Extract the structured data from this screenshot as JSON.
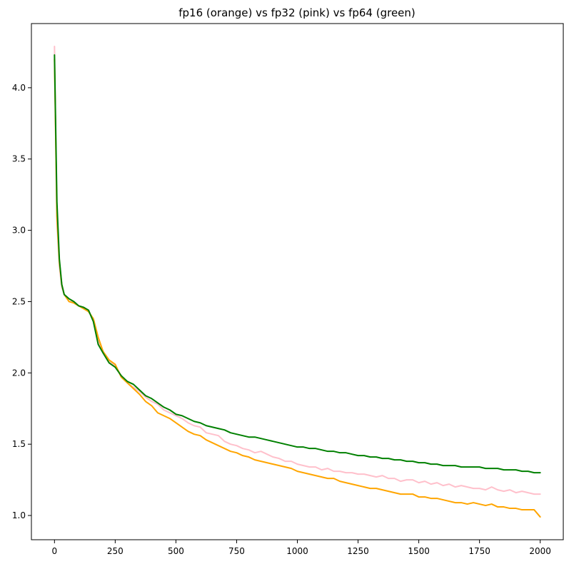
{
  "chart_data": {
    "type": "line",
    "title": "fp16 (orange) vs fp32 (pink) vs fp64 (green)",
    "xlabel": "",
    "ylabel": "",
    "xlim": [
      -95,
      2095
    ],
    "ylim": [
      0.83,
      4.45
    ],
    "xticks": [
      0,
      250,
      500,
      750,
      1000,
      1250,
      1500,
      1750,
      2000
    ],
    "yticks": [
      1.0,
      1.5,
      2.0,
      2.5,
      3.0,
      3.5,
      4.0
    ],
    "ytick_labels": [
      "1.0",
      "1.5",
      "2.0",
      "2.5",
      "3.0",
      "3.5",
      "4.0"
    ],
    "grid": false,
    "legend": "none",
    "series": [
      {
        "color": "#ffc0cb",
        "x": [
          0,
          10,
          20,
          30,
          40,
          60,
          80,
          100,
          120,
          140,
          160,
          180,
          200,
          225,
          250,
          275,
          300,
          325,
          350,
          375,
          400,
          425,
          450,
          475,
          500,
          525,
          550,
          575,
          600,
          625,
          650,
          675,
          700,
          725,
          750,
          775,
          800,
          825,
          850,
          875,
          900,
          925,
          950,
          975,
          1000,
          1025,
          1050,
          1075,
          1100,
          1125,
          1150,
          1175,
          1200,
          1225,
          1250,
          1275,
          1300,
          1325,
          1350,
          1375,
          1400,
          1425,
          1450,
          1475,
          1500,
          1525,
          1550,
          1575,
          1600,
          1625,
          1650,
          1675,
          1700,
          1725,
          1750,
          1775,
          1800,
          1825,
          1850,
          1875,
          1900,
          1925,
          1950,
          1975,
          2000
        ],
        "y": [
          4.29,
          3.05,
          2.75,
          2.6,
          2.55,
          2.5,
          2.5,
          2.47,
          2.46,
          2.44,
          2.37,
          2.22,
          2.15,
          2.08,
          2.05,
          1.98,
          1.93,
          1.9,
          1.87,
          1.83,
          1.8,
          1.78,
          1.74,
          1.72,
          1.7,
          1.68,
          1.65,
          1.63,
          1.62,
          1.58,
          1.57,
          1.56,
          1.52,
          1.5,
          1.49,
          1.47,
          1.46,
          1.44,
          1.45,
          1.43,
          1.41,
          1.4,
          1.38,
          1.38,
          1.36,
          1.35,
          1.34,
          1.34,
          1.32,
          1.33,
          1.31,
          1.31,
          1.3,
          1.3,
          1.29,
          1.29,
          1.28,
          1.27,
          1.28,
          1.26,
          1.26,
          1.24,
          1.25,
          1.25,
          1.23,
          1.24,
          1.22,
          1.23,
          1.21,
          1.22,
          1.2,
          1.21,
          1.2,
          1.19,
          1.19,
          1.18,
          1.2,
          1.18,
          1.17,
          1.18,
          1.16,
          1.17,
          1.16,
          1.15,
          1.15
        ]
      },
      {
        "color": "#ffa500",
        "x": [
          0,
          10,
          20,
          30,
          40,
          60,
          80,
          100,
          120,
          140,
          160,
          180,
          200,
          225,
          250,
          275,
          300,
          325,
          350,
          375,
          400,
          425,
          450,
          475,
          500,
          525,
          550,
          575,
          600,
          625,
          650,
          675,
          700,
          725,
          750,
          775,
          800,
          825,
          850,
          875,
          900,
          925,
          950,
          975,
          1000,
          1025,
          1050,
          1075,
          1100,
          1125,
          1150,
          1175,
          1200,
          1225,
          1250,
          1275,
          1300,
          1325,
          1350,
          1375,
          1400,
          1425,
          1450,
          1475,
          1500,
          1525,
          1550,
          1575,
          1600,
          1625,
          1650,
          1675,
          1700,
          1725,
          1750,
          1775,
          1800,
          1825,
          1850,
          1875,
          1900,
          1925,
          1950,
          1975,
          2000
        ],
        "y": [
          4.2,
          3.1,
          2.78,
          2.62,
          2.55,
          2.5,
          2.49,
          2.47,
          2.45,
          2.43,
          2.38,
          2.25,
          2.15,
          2.09,
          2.06,
          1.97,
          1.93,
          1.89,
          1.85,
          1.8,
          1.77,
          1.72,
          1.7,
          1.68,
          1.65,
          1.62,
          1.59,
          1.57,
          1.56,
          1.53,
          1.51,
          1.49,
          1.47,
          1.45,
          1.44,
          1.42,
          1.41,
          1.39,
          1.38,
          1.37,
          1.36,
          1.35,
          1.34,
          1.33,
          1.31,
          1.3,
          1.29,
          1.28,
          1.27,
          1.26,
          1.26,
          1.24,
          1.23,
          1.22,
          1.21,
          1.2,
          1.19,
          1.19,
          1.18,
          1.17,
          1.16,
          1.15,
          1.15,
          1.15,
          1.13,
          1.13,
          1.12,
          1.12,
          1.11,
          1.1,
          1.09,
          1.09,
          1.08,
          1.09,
          1.08,
          1.07,
          1.08,
          1.06,
          1.06,
          1.05,
          1.05,
          1.04,
          1.04,
          1.04,
          0.99
        ]
      },
      {
        "color": "#008000",
        "x": [
          0,
          10,
          20,
          30,
          40,
          60,
          80,
          100,
          120,
          140,
          160,
          180,
          200,
          225,
          250,
          275,
          300,
          325,
          350,
          375,
          400,
          425,
          450,
          475,
          500,
          525,
          550,
          575,
          600,
          625,
          650,
          675,
          700,
          725,
          750,
          775,
          800,
          825,
          850,
          875,
          900,
          925,
          950,
          975,
          1000,
          1025,
          1050,
          1075,
          1100,
          1125,
          1150,
          1175,
          1200,
          1225,
          1250,
          1275,
          1300,
          1325,
          1350,
          1375,
          1400,
          1425,
          1450,
          1475,
          1500,
          1525,
          1550,
          1575,
          1600,
          1625,
          1650,
          1675,
          1700,
          1725,
          1750,
          1775,
          1800,
          1825,
          1850,
          1875,
          1900,
          1925,
          1950,
          1975,
          2000
        ],
        "y": [
          4.23,
          3.2,
          2.8,
          2.62,
          2.55,
          2.52,
          2.5,
          2.47,
          2.46,
          2.44,
          2.36,
          2.2,
          2.14,
          2.07,
          2.04,
          1.98,
          1.94,
          1.92,
          1.88,
          1.84,
          1.82,
          1.79,
          1.76,
          1.74,
          1.71,
          1.7,
          1.68,
          1.66,
          1.65,
          1.63,
          1.62,
          1.61,
          1.6,
          1.58,
          1.57,
          1.56,
          1.55,
          1.55,
          1.54,
          1.53,
          1.52,
          1.51,
          1.5,
          1.49,
          1.48,
          1.48,
          1.47,
          1.47,
          1.46,
          1.45,
          1.45,
          1.44,
          1.44,
          1.43,
          1.42,
          1.42,
          1.41,
          1.41,
          1.4,
          1.4,
          1.39,
          1.39,
          1.38,
          1.38,
          1.37,
          1.37,
          1.36,
          1.36,
          1.35,
          1.35,
          1.35,
          1.34,
          1.34,
          1.34,
          1.34,
          1.33,
          1.33,
          1.33,
          1.32,
          1.32,
          1.32,
          1.31,
          1.31,
          1.3,
          1.3
        ]
      }
    ]
  }
}
